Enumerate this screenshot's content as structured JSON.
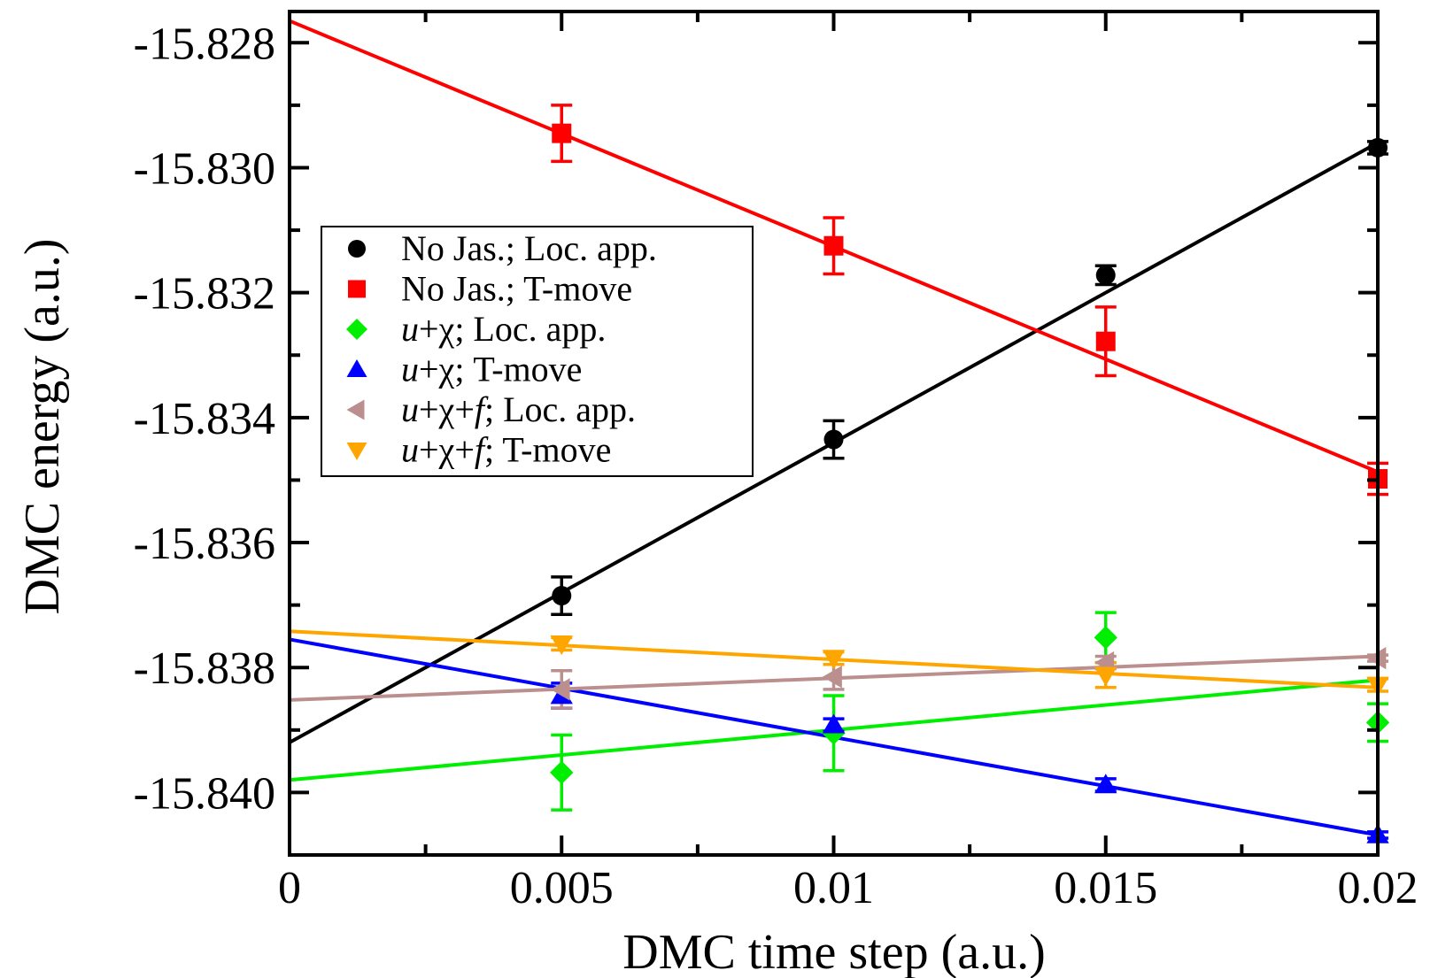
{
  "chart_data": {
    "type": "scatter",
    "xlabel": "DMC time step (a.u.)",
    "ylabel": "DMC energy (a.u.)",
    "xlim": [
      0,
      0.02
    ],
    "ylim": [
      -15.841,
      -15.8275
    ],
    "x_ticks": [
      0,
      0.005,
      0.01,
      0.015,
      0.02
    ],
    "x_tick_labels": [
      "0",
      "0.005",
      "0.01",
      "0.015",
      "0.02"
    ],
    "y_ticks": [
      -15.828,
      -15.83,
      -15.832,
      -15.834,
      -15.836,
      -15.838,
      -15.84
    ],
    "y_tick_labels": [
      "-15.828",
      "-15.830",
      "-15.832",
      "-15.834",
      "-15.836",
      "-15.838",
      "-15.840"
    ],
    "grid": false,
    "legend_position": "middle-left",
    "series": [
      {
        "name": "No Jas.; Loc. app.",
        "legend_parts": [
          [
            "No Jas.; Loc. app.",
            false
          ]
        ],
        "marker": "circle",
        "color": "#000000",
        "x": [
          0.005,
          0.01,
          0.015,
          0.02
        ],
        "y": [
          -15.83685,
          -15.83435,
          -15.83172,
          -15.82968
        ],
        "err": [
          0.0003,
          0.0003,
          0.00015,
          0.0001
        ],
        "fit": {
          "x": [
            0,
            0.02
          ],
          "y": [
            -15.8392,
            -15.8296
          ]
        }
      },
      {
        "name": "No Jas.; T-move",
        "legend_parts": [
          [
            "No Jas.; T-move",
            false
          ]
        ],
        "marker": "square",
        "color": "#ff0000",
        "x": [
          0.005,
          0.01,
          0.015,
          0.02
        ],
        "y": [
          -15.82945,
          -15.83125,
          -15.83278,
          -15.83498
        ],
        "err": [
          0.00045,
          0.00045,
          0.00055,
          0.00025
        ],
        "fit": {
          "x": [
            0,
            0.02
          ],
          "y": [
            -15.82765,
            -15.83487
          ]
        }
      },
      {
        "name": "u+χ; Loc. app.",
        "legend_parts": [
          [
            "u",
            true
          ],
          [
            "+χ; Loc. app.",
            false
          ]
        ],
        "marker": "diamond",
        "color": "#00ee00",
        "x": [
          0.005,
          0.01,
          0.015,
          0.02
        ],
        "y": [
          -15.83968,
          -15.83905,
          -15.83752,
          -15.83888
        ],
        "err": [
          0.0006,
          0.0006,
          0.0004,
          0.0003
        ],
        "fit": {
          "x": [
            0,
            0.02
          ],
          "y": [
            -15.8398,
            -15.8382
          ]
        }
      },
      {
        "name": "u+χ; T-move",
        "legend_parts": [
          [
            "u",
            true
          ],
          [
            "+χ; T-move",
            false
          ]
        ],
        "marker": "triangle-up",
        "color": "#0000ff",
        "x": [
          0.005,
          0.01,
          0.015,
          0.02
        ],
        "y": [
          -15.83845,
          -15.83892,
          -15.83988,
          -15.84068
        ],
        "err": [
          0.0002,
          0.0001,
          0.0001,
          5e-05
        ],
        "fit": {
          "x": [
            0,
            0.02
          ],
          "y": [
            -15.83755,
            -15.84068
          ]
        }
      },
      {
        "name": "u+χ+f; Loc. app.",
        "legend_parts": [
          [
            "u",
            true
          ],
          [
            "+χ+",
            false
          ],
          [
            "f",
            true
          ],
          [
            "; Loc. app.",
            false
          ]
        ],
        "marker": "triangle-left",
        "color": "#bc8f8f",
        "x": [
          0.005,
          0.01,
          0.015,
          0.02
        ],
        "y": [
          -15.83835,
          -15.83815,
          -15.83792,
          -15.83785
        ],
        "err": [
          0.0003,
          0.0002,
          0.0001,
          5e-05
        ],
        "fit": {
          "x": [
            0,
            0.02
          ],
          "y": [
            -15.83852,
            -15.83782
          ]
        }
      },
      {
        "name": "u+χ+f; T-move",
        "legend_parts": [
          [
            "u",
            true
          ],
          [
            "+χ+",
            false
          ],
          [
            "f",
            true
          ],
          [
            "; T-move",
            false
          ]
        ],
        "marker": "triangle-down",
        "color": "#ffa500",
        "x": [
          0.005,
          0.01,
          0.015,
          0.02
        ],
        "y": [
          -15.83762,
          -15.83785,
          -15.83812,
          -15.83828
        ],
        "err": [
          0.0001,
          0.0001,
          0.0002,
          0.0001
        ],
        "fit": {
          "x": [
            0,
            0.02
          ],
          "y": [
            -15.83742,
            -15.83832
          ]
        }
      }
    ]
  }
}
